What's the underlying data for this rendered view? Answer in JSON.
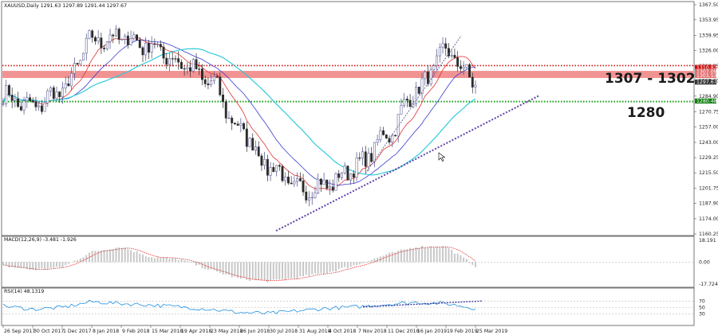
{
  "panels": {
    "main": {
      "title": "XAUUSD,Daily  1291.63 1297.89 1291.44 1297.67"
    },
    "macd": {
      "title": "MACD(12,26,9) -3.481 -1.926"
    },
    "rsi": {
      "title": "RSI(14) 48.1319"
    }
  },
  "annotations": {
    "resistance_zone": "1307 - 1302",
    "support_level": "1280"
  },
  "price_axis": [
    "1367.50",
    "1353.95",
    "1339.95",
    "1326.00",
    "1312.25",
    "1298.60",
    "1284.90",
    "1270.75",
    "1257.00",
    "1243.00",
    "1229.25",
    "1215.50",
    "1201.75",
    "1187.90",
    "1174.00",
    "1160.25"
  ],
  "price_tags": [
    "1310.82",
    "1307.09",
    "1303.53",
    "1297.67",
    "1280.48"
  ],
  "macd_axis": [
    "18.191",
    "0.00",
    "-17.724"
  ],
  "rsi_axis": [
    "70",
    "50",
    "30"
  ],
  "date_axis": [
    "26 Sep 2017",
    "30 Oct 2017",
    "1 Dec 2017",
    "8 Jan 2018",
    "9 Feb 2018",
    "15 Mar 2018",
    "19 Apr 2018",
    "23 May 2018",
    "26 Jun 2018",
    "30 Jul 2018",
    "31 Aug 2018",
    "4 Oct 2018",
    "7 Nov 2018",
    "11 Dec 2018",
    "16 Jan 2019",
    "19 Feb 2019",
    "25 Mar 2019"
  ],
  "colors": {
    "bull": "#4a4a8c",
    "bear": "#2b2b2b",
    "ma_fast": "#e03030",
    "ma_mid": "#3a3ad0",
    "ma_slow": "#20c8d8",
    "zone": "#f08080",
    "resistance_dots": "#d01010",
    "support_dots": "#10a010",
    "trend_line": "#4040a0",
    "trend_dots": "#c050c0",
    "macd_signal": "#e03030",
    "rsi_line": "#2090e0"
  },
  "chart_data": [
    {
      "type": "line",
      "title": "XAUUSD,Daily  1291.63 1297.89 1291.44 1297.67",
      "x": [
        "26 Sep 2017",
        "30 Oct 2017",
        "1 Dec 2017",
        "8 Jan 2018",
        "9 Feb 2018",
        "15 Mar 2018",
        "19 Apr 2018",
        "23 May 2018",
        "26 Jun 2018",
        "30 Jul 2018",
        "31 Aug 2018",
        "4 Oct 2018",
        "7 Nov 2018",
        "11 Dec 2018",
        "16 Jan 2019",
        "19 Feb 2019",
        "25 Mar 2019"
      ],
      "series": [
        {
          "values": [
            1285,
            1275,
            1290,
            1335,
            1338,
            1330,
            1315,
            1298,
            1255,
            1222,
            1200,
            1205,
            1222,
            1250,
            1290,
            1325,
            1298
          ]
        }
      ],
      "ylim": [
        1160.25,
        1367.5
      ],
      "zone": [
        1302,
        1307
      ],
      "support": 1280
    },
    {
      "type": "bar",
      "title": "MACD(12,26,9) -3.481 -1.926",
      "x": [
        "26 Sep 2017",
        "30 Oct 2017",
        "1 Dec 2017",
        "8 Jan 2018",
        "9 Feb 2018",
        "15 Mar 2018",
        "19 Apr 2018",
        "23 May 2018",
        "26 Jun 2018",
        "30 Jul 2018",
        "31 Aug 2018",
        "4 Oct 2018",
        "7 Nov 2018",
        "11 Dec 2018",
        "16 Jan 2019",
        "19 Feb 2019",
        "25 Mar 2019"
      ],
      "values": [
        -3,
        -6,
        -4,
        8,
        12,
        4,
        2,
        -6,
        -13,
        -15,
        -12,
        -8,
        -2,
        6,
        12,
        12,
        -3
      ],
      "ylim": [
        -17.724,
        18.191
      ]
    },
    {
      "type": "line",
      "title": "RSI(14) 48.1319",
      "x": [
        "26 Sep 2017",
        "30 Oct 2017",
        "1 Dec 2017",
        "8 Jan 2018",
        "9 Feb 2018",
        "15 Mar 2018",
        "19 Apr 2018",
        "23 May 2018",
        "26 Jun 2018",
        "30 Jul 2018",
        "31 Aug 2018",
        "4 Oct 2018",
        "7 Nov 2018",
        "11 Dec 2018",
        "16 Jan 2019",
        "19 Feb 2019",
        "25 Mar 2019"
      ],
      "values": [
        55,
        45,
        50,
        68,
        62,
        58,
        52,
        45,
        35,
        32,
        40,
        48,
        52,
        60,
        66,
        62,
        48
      ],
      "ylim": [
        0,
        100
      ]
    }
  ]
}
